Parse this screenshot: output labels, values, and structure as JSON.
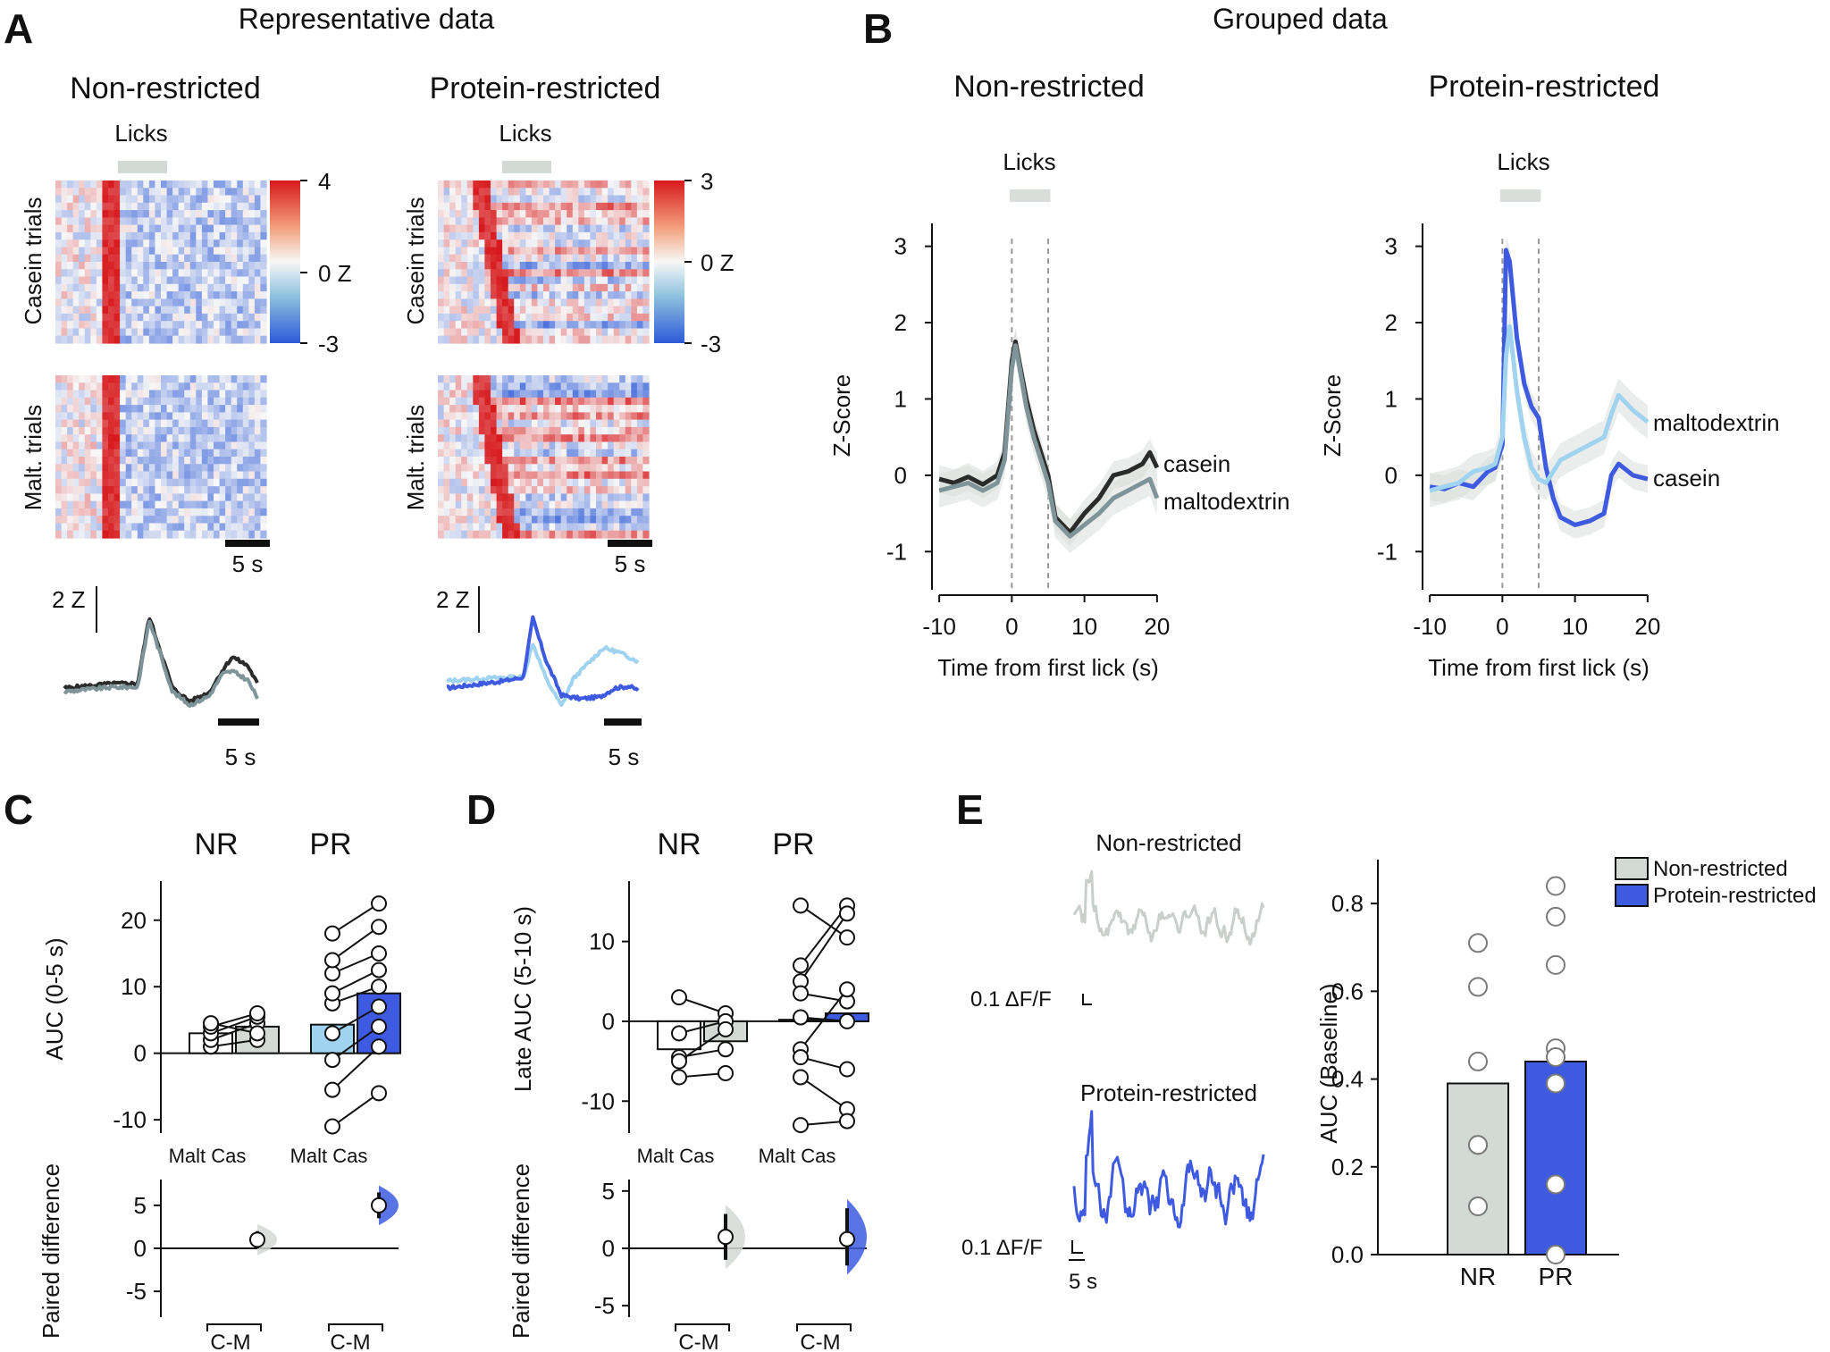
{
  "panels": {
    "A": {
      "letter": "A",
      "title": "Representative data"
    },
    "B": {
      "letter": "B",
      "title": "Grouped data"
    },
    "C": {
      "letter": "C"
    },
    "D": {
      "letter": "D"
    },
    "E": {
      "letter": "E"
    }
  },
  "group_labels": {
    "nr": "Non-restricted",
    "pr": "Protein-restricted",
    "nr_short": "NR",
    "pr_short": "PR",
    "licks": "Licks"
  },
  "heatmap": {
    "casein_label": "Casein trials",
    "malt_label": "Malt. trials",
    "scale_bar": "5 s",
    "trace_scale": "2 Z",
    "nr_colorbar": {
      "max": "4",
      "mid": "0 Z",
      "min": "-3"
    },
    "pr_colorbar": {
      "max": "3",
      "mid": "0 Z",
      "min": "-3"
    }
  },
  "colors": {
    "casein_nr": "#2b2b2b",
    "malt_nr": "#7e9499",
    "casein_pr": "#3d5ae0",
    "malt_pr": "#9fd3ef",
    "nr_bar": "#d3d9d5",
    "pr_bar": "#3d5ae0",
    "shade": "#d9dedb"
  },
  "legends": {
    "casein": "casein",
    "maltodextrin": "maltodextrin"
  },
  "panelC": {
    "ylabel": "AUC (0-5 s)",
    "xtick": "Malt Cas",
    "diff_label": "Paired difference",
    "cm": "C-M"
  },
  "panelD": {
    "ylabel": "Late AUC (5-10 s)",
    "xtick": "Malt Cas",
    "diff_label": "Paired difference",
    "cm": "C-M"
  },
  "panelE": {
    "nr_trace_label": "Non-restricted",
    "pr_trace_label": "Protein-restricted",
    "dff": "0.1 ΔF/F",
    "time": "5 s",
    "ylabel": "AUC (Baseline)",
    "legend_nr": "Non-restricted",
    "legend_pr": "Protein-restricted"
  },
  "chart_data": [
    {
      "id": "B-nr",
      "type": "line",
      "title": "Non-restricted",
      "xlabel": "Time from first lick (s)",
      "ylabel": "Z-Score",
      "xlim": [
        -11,
        21
      ],
      "ylim": [
        -1.5,
        3.3
      ],
      "xticks": [
        -10,
        0,
        10,
        20
      ],
      "yticks": [
        -1,
        0,
        1,
        2,
        3
      ],
      "lick_window": [
        0,
        5
      ],
      "x": [
        -10,
        -8,
        -6,
        -4,
        -2,
        -1,
        0,
        0.5,
        1,
        2,
        3,
        4,
        5,
        6,
        7,
        8,
        10,
        12,
        14,
        16,
        18,
        19,
        20
      ],
      "series": [
        {
          "name": "casein",
          "values": [
            -0.05,
            -0.1,
            -0.02,
            -0.12,
            0.0,
            0.3,
            1.5,
            1.75,
            1.5,
            1.0,
            0.6,
            0.3,
            0.0,
            -0.55,
            -0.65,
            -0.75,
            -0.5,
            -0.3,
            0.0,
            0.05,
            0.15,
            0.3,
            0.1
          ]
        },
        {
          "name": "maltodextrin",
          "values": [
            -0.2,
            -0.15,
            -0.1,
            -0.2,
            -0.1,
            0.2,
            1.4,
            1.7,
            1.45,
            0.9,
            0.5,
            0.2,
            -0.1,
            -0.6,
            -0.7,
            -0.8,
            -0.65,
            -0.5,
            -0.3,
            -0.2,
            -0.1,
            -0.05,
            -0.3
          ]
        }
      ]
    },
    {
      "id": "B-pr",
      "type": "line",
      "title": "Protein-restricted",
      "xlabel": "Time from first lick (s)",
      "ylabel": "Z-Score",
      "xlim": [
        -11,
        21
      ],
      "ylim": [
        -1.5,
        3.3
      ],
      "xticks": [
        -10,
        0,
        10,
        20
      ],
      "yticks": [
        -1,
        0,
        1,
        2,
        3
      ],
      "lick_window": [
        0,
        5
      ],
      "x": [
        -10,
        -8,
        -6,
        -4,
        -2,
        -1,
        0,
        0.5,
        1,
        2,
        3,
        4,
        5,
        6,
        7,
        8,
        10,
        12,
        14,
        15,
        16,
        18,
        20
      ],
      "series": [
        {
          "name": "casein",
          "values": [
            -0.15,
            -0.18,
            -0.1,
            -0.15,
            0.05,
            0.1,
            0.4,
            2.95,
            2.8,
            1.8,
            1.2,
            0.9,
            0.75,
            0.1,
            -0.3,
            -0.55,
            -0.65,
            -0.6,
            -0.5,
            0.0,
            0.15,
            0.0,
            -0.05
          ]
        },
        {
          "name": "maltodextrin",
          "values": [
            -0.2,
            -0.15,
            -0.1,
            0.05,
            0.1,
            0.15,
            0.5,
            1.55,
            1.95,
            1.1,
            0.5,
            0.1,
            -0.05,
            -0.1,
            0.05,
            0.2,
            0.3,
            0.4,
            0.5,
            0.8,
            1.05,
            0.85,
            0.7
          ]
        }
      ]
    },
    {
      "id": "C",
      "type": "bar",
      "ylabel": "AUC (0-5 s)",
      "ylim": [
        -12,
        24
      ],
      "yticks": [
        -10,
        0,
        10,
        20
      ],
      "groups": [
        "NR",
        "PR"
      ],
      "conditions": [
        "Malt",
        "Cas"
      ],
      "series": [
        {
          "name": "NR",
          "means": [
            3.0,
            4.0
          ],
          "pairs": [
            [
              1.0,
              2.0
            ],
            [
              2.0,
              4.5
            ],
            [
              3.0,
              5.5
            ],
            [
              4.0,
              6.0
            ],
            [
              4.5,
              3.0
            ]
          ]
        },
        {
          "name": "PR",
          "means": [
            4.3,
            9.0
          ],
          "pairs": [
            [
              -11.0,
              -6.0
            ],
            [
              -5.5,
              1.0
            ],
            [
              -1.0,
              4.0
            ],
            [
              3.0,
              7.0
            ],
            [
              7.5,
              10.0
            ],
            [
              9.0,
              12.5
            ],
            [
              12.0,
              15.0
            ],
            [
              14.0,
              19.0
            ],
            [
              18.0,
              22.5
            ]
          ]
        }
      ],
      "paired_difference": {
        "ylim": [
          -8,
          8
        ],
        "yticks": [
          -5,
          0,
          5
        ],
        "values": [
          1.0,
          5.0
        ],
        "ci": [
          [
            0.0,
            2.0
          ],
          [
            3.5,
            6.5
          ]
        ]
      }
    },
    {
      "id": "D",
      "type": "bar",
      "ylabel": "Late AUC (5-10 s)",
      "ylim": [
        -14,
        16
      ],
      "yticks": [
        -10,
        0,
        10
      ],
      "groups": [
        "NR",
        "PR"
      ],
      "conditions": [
        "Malt",
        "Cas"
      ],
      "series": [
        {
          "name": "NR",
          "means": [
            -3.5,
            -2.5
          ],
          "pairs": [
            [
              3.0,
              1.0
            ],
            [
              -1.5,
              0.0
            ],
            [
              -4.5,
              -3.5
            ],
            [
              -5.0,
              -1.0
            ],
            [
              -7.0,
              -6.5
            ]
          ]
        },
        {
          "name": "PR",
          "means": [
            0.2,
            1.0
          ],
          "pairs": [
            [
              14.5,
              10.5
            ],
            [
              7.0,
              14.5
            ],
            [
              5.0,
              13.5
            ],
            [
              3.5,
              2.5
            ],
            [
              0.5,
              0.0
            ],
            [
              -3.5,
              4.0
            ],
            [
              -4.5,
              -6.0
            ],
            [
              -7.0,
              -11.0
            ],
            [
              -13.0,
              -12.5
            ]
          ]
        }
      ],
      "paired_difference": {
        "ylim": [
          -6,
          6
        ],
        "yticks": [
          -5,
          0,
          5
        ],
        "values": [
          1.0,
          0.8
        ],
        "ci": [
          [
            -1.0,
            3.0
          ],
          [
            -1.5,
            3.5
          ]
        ]
      }
    },
    {
      "id": "E",
      "type": "bar",
      "ylabel": "AUC (Baseline)",
      "ylim": [
        0,
        0.9
      ],
      "yticks": [
        0.0,
        0.2,
        0.4,
        0.6,
        0.8
      ],
      "categories": [
        "NR",
        "PR"
      ],
      "values": [
        0.39,
        0.44
      ],
      "points": [
        [
          0.71,
          0.61,
          0.44,
          0.25,
          0.25,
          0.11
        ],
        [
          0.84,
          0.77,
          0.66,
          0.47,
          0.45,
          0.39,
          0.16,
          0.0
        ]
      ]
    }
  ]
}
